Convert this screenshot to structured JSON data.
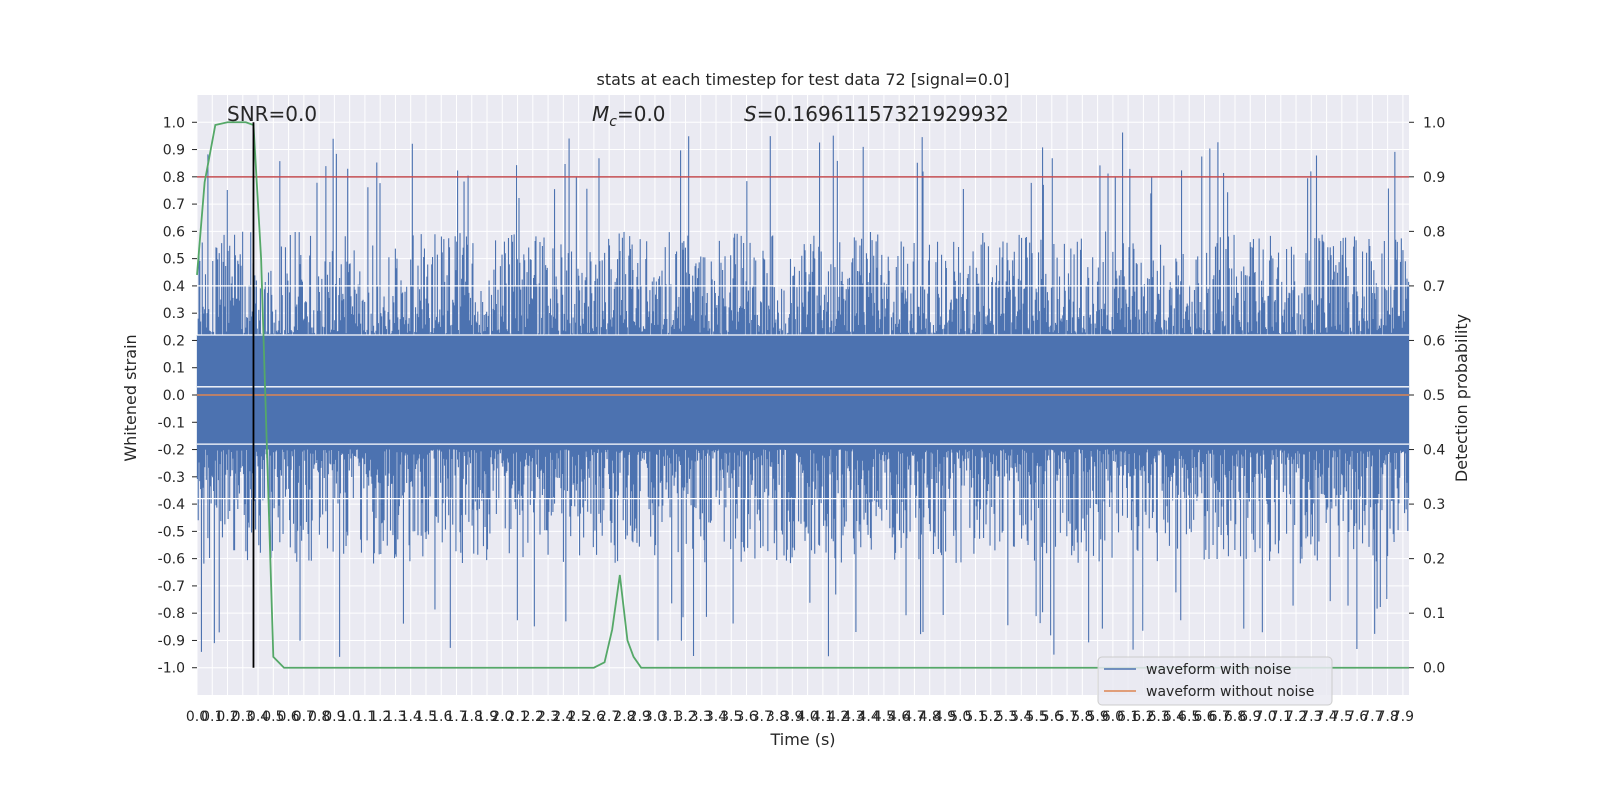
{
  "chart_data": {
    "type": "line",
    "title": "stats at each timestep for test data 72 [signal=0.0]",
    "xlabel": "Time (s)",
    "ylabel": "Whitened strain",
    "ylabel_right": "Detection probability",
    "xlim": [
      0.0,
      7.94
    ],
    "ylim": [
      -1.1,
      1.1
    ],
    "ylim_right": [
      -0.05,
      1.05
    ],
    "grid": true,
    "legend_position": "lower-right",
    "x_ticks": [
      "0.0",
      "0.1",
      "0.2",
      "0.3",
      "0.4",
      "0.5",
      "0.6",
      "0.7",
      "0.8",
      "0.9",
      "1.0",
      "1.1",
      "1.2",
      "1.3",
      "1.4",
      "1.5",
      "1.6",
      "1.7",
      "1.8",
      "1.9",
      "2.0",
      "2.1",
      "2.2",
      "2.3",
      "2.4",
      "2.5",
      "2.6",
      "2.7",
      "2.8",
      "2.9",
      "3.0",
      "3.1",
      "3.2",
      "3.3",
      "3.4",
      "3.5",
      "3.6",
      "3.7",
      "3.8",
      "3.9",
      "4.0",
      "4.1",
      "4.2",
      "4.3",
      "4.4",
      "4.5",
      "4.6",
      "4.7",
      "4.8",
      "4.9",
      "5.0",
      "5.1",
      "5.2",
      "5.3",
      "5.4",
      "5.5",
      "5.6",
      "5.7",
      "5.8",
      "5.9",
      "6.0",
      "6.1",
      "6.2",
      "6.3",
      "6.4",
      "6.5",
      "6.6",
      "6.7",
      "6.8",
      "6.9",
      "7.0",
      "7.1",
      "7.2",
      "7.3",
      "7.4",
      "7.5",
      "7.6",
      "7.7",
      "7.8",
      "7.9"
    ],
    "y_ticks": [
      "1.0",
      "0.9",
      "0.8",
      "0.7",
      "0.6",
      "0.5",
      "0.4",
      "0.3",
      "0.2",
      "0.1",
      "0.0",
      "-0.1",
      "-0.2",
      "-0.3",
      "-0.4",
      "-0.5",
      "-0.6",
      "-0.7",
      "-0.8",
      "-0.9",
      "-1.0"
    ],
    "y_ticks_right": [
      "1.0",
      "0.9",
      "0.8",
      "0.7",
      "0.6",
      "0.5",
      "0.4",
      "0.3",
      "0.2",
      "0.1",
      "0.0"
    ],
    "annotations": [
      {
        "label": "SNR=0.0"
      },
      {
        "label": "Mc=0.0",
        "symbol": "M",
        "subscript": "c",
        "rest": "=0.0"
      },
      {
        "label": "S=0.16961157321929932",
        "symbol": "S",
        "rest": "=0.16961157321929932"
      }
    ],
    "threshold_probability": 0.9,
    "marker_time": 0.37,
    "series": [
      {
        "name": "waveform with noise",
        "color": "#4c72b0",
        "envelope_max": 1.0,
        "envelope_min": -0.96
      },
      {
        "name": "waveform without noise",
        "color": "#dd8452",
        "values_constant": 0.0
      },
      {
        "color": "#55a868",
        "axis": "right",
        "x": [
          0.0,
          0.05,
          0.12,
          0.2,
          0.27,
          0.32,
          0.37,
          0.42,
          0.5,
          0.57,
          0.63,
          0.7,
          1.0,
          1.5,
          2.0,
          2.5,
          2.6,
          2.67,
          2.72,
          2.77,
          2.82,
          2.86,
          2.91,
          2.96,
          3.0,
          3.5,
          4.0,
          4.5,
          5.0,
          5.5,
          6.0,
          6.5,
          7.0,
          7.5,
          7.94
        ],
        "y": [
          0.72,
          0.89,
          0.995,
          1.0,
          1.0,
          1.0,
          0.995,
          0.75,
          0.02,
          0.0,
          0.0,
          0.0,
          0.0,
          0.0,
          0.0,
          0.0,
          0.0,
          0.01,
          0.07,
          0.17,
          0.05,
          0.02,
          0.0,
          0.0,
          0.0,
          0.0,
          0.0,
          0.0,
          0.0,
          0.0,
          0.0,
          0.0,
          0.0,
          0.0,
          0.0
        ]
      }
    ]
  }
}
